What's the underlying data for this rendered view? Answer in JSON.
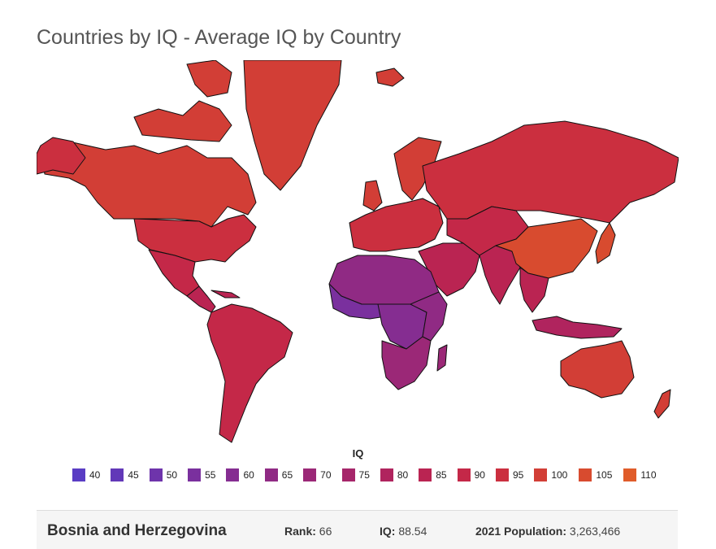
{
  "title": "Countries by IQ - Average IQ by Country",
  "legend": {
    "title": "IQ",
    "items": [
      {
        "label": "40",
        "color": "#5a3dc4"
      },
      {
        "label": "45",
        "color": "#6238b8"
      },
      {
        "label": "50",
        "color": "#6e34ab"
      },
      {
        "label": "55",
        "color": "#7a309e"
      },
      {
        "label": "60",
        "color": "#852d91"
      },
      {
        "label": "65",
        "color": "#902a84"
      },
      {
        "label": "70",
        "color": "#9b2877"
      },
      {
        "label": "75",
        "color": "#a6266a"
      },
      {
        "label": "80",
        "color": "#b0245e"
      },
      {
        "label": "85",
        "color": "#ba2452"
      },
      {
        "label": "90",
        "color": "#c42848"
      },
      {
        "label": "95",
        "color": "#cb2f3f"
      },
      {
        "label": "100",
        "color": "#d23e36"
      },
      {
        "label": "105",
        "color": "#d84b2f"
      },
      {
        "label": "110",
        "color": "#e05c2a"
      }
    ]
  },
  "map": {
    "regions": [
      {
        "name": "greenland",
        "color": "#d23e36"
      },
      {
        "name": "canada",
        "color": "#d23e36"
      },
      {
        "name": "usa",
        "color": "#cb2f3f"
      },
      {
        "name": "mexico",
        "color": "#c42848"
      },
      {
        "name": "central-america",
        "color": "#ba2452"
      },
      {
        "name": "south-america",
        "color": "#c42848"
      },
      {
        "name": "europe",
        "color": "#cb2f3f"
      },
      {
        "name": "russia",
        "color": "#cb2f3f"
      },
      {
        "name": "middle-east",
        "color": "#ba2452"
      },
      {
        "name": "north-africa",
        "color": "#902a84"
      },
      {
        "name": "west-africa",
        "color": "#7a309e"
      },
      {
        "name": "central-africa",
        "color": "#852d91"
      },
      {
        "name": "east-africa",
        "color": "#902a84"
      },
      {
        "name": "southern-africa",
        "color": "#9b2877"
      },
      {
        "name": "india",
        "color": "#ba2452"
      },
      {
        "name": "central-asia",
        "color": "#c42848"
      },
      {
        "name": "china",
        "color": "#d84b2f"
      },
      {
        "name": "southeast-asia",
        "color": "#ba2452"
      },
      {
        "name": "japan",
        "color": "#d84b2f"
      },
      {
        "name": "indonesia",
        "color": "#b0245e"
      },
      {
        "name": "australia",
        "color": "#d23e36"
      },
      {
        "name": "new-zealand",
        "color": "#d23e36"
      },
      {
        "name": "madagascar",
        "color": "#9b2877"
      },
      {
        "name": "uk",
        "color": "#d23e36"
      },
      {
        "name": "iceland",
        "color": "#d23e36"
      },
      {
        "name": "scandinavia",
        "color": "#d23e36"
      }
    ]
  },
  "info": {
    "country": "Bosnia and Herzegovina",
    "rank_label": "Rank:",
    "rank_value": "66",
    "iq_label": "IQ:",
    "iq_value": "88.54",
    "pop_label": "2021 Population:",
    "pop_value": "3,263,466"
  }
}
